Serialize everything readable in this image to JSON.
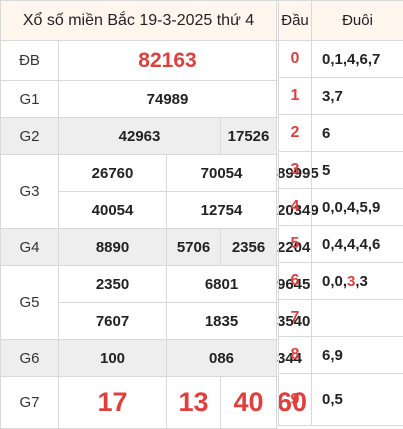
{
  "title": "Xổ số miền Bắc 19-3-2025 thứ 4",
  "prizes": {
    "db": {
      "label": "ĐB",
      "numbers": [
        "82163"
      ]
    },
    "g1": {
      "label": "G1",
      "numbers": [
        "74989"
      ]
    },
    "g2": {
      "label": "G2",
      "numbers": [
        "42963",
        "17526"
      ]
    },
    "g3": {
      "label": "G3",
      "numbers": [
        "26760",
        "70054",
        "89995",
        "40054",
        "12754",
        "20349"
      ]
    },
    "g4": {
      "label": "G4",
      "numbers": [
        "8890",
        "5706",
        "2356",
        "2204"
      ]
    },
    "g5": {
      "label": "G5",
      "numbers": [
        "2350",
        "6801",
        "9645",
        "7607",
        "1835",
        "3540"
      ]
    },
    "g6": {
      "label": "G6",
      "numbers": [
        "100",
        "086",
        "344"
      ]
    },
    "g7": {
      "label": "G7",
      "numbers": [
        "17",
        "13",
        "40",
        "60"
      ]
    }
  },
  "loto": {
    "dau_header": "Đầu",
    "duoi_header": "Đuôi",
    "rows": [
      {
        "dau": "0",
        "duoi": "0,1,4,6,7"
      },
      {
        "dau": "1",
        "duoi": "3,7"
      },
      {
        "dau": "2",
        "duoi": "6"
      },
      {
        "dau": "3",
        "duoi": "5"
      },
      {
        "dau": "4",
        "duoi": "0,0,4,5,9"
      },
      {
        "dau": "5",
        "duoi": "0,4,4,4,6"
      },
      {
        "dau": "6",
        "duoi_parts": [
          "0,0,",
          "3",
          ",3"
        ]
      },
      {
        "dau": "7",
        "duoi": ""
      },
      {
        "dau": "8",
        "duoi": "6,9"
      },
      {
        "dau": "9",
        "duoi": "0,5"
      }
    ]
  },
  "colors": {
    "accent": "#e0403d",
    "header_bg": "#fff6ed",
    "shade_bg": "#eeeeee"
  }
}
